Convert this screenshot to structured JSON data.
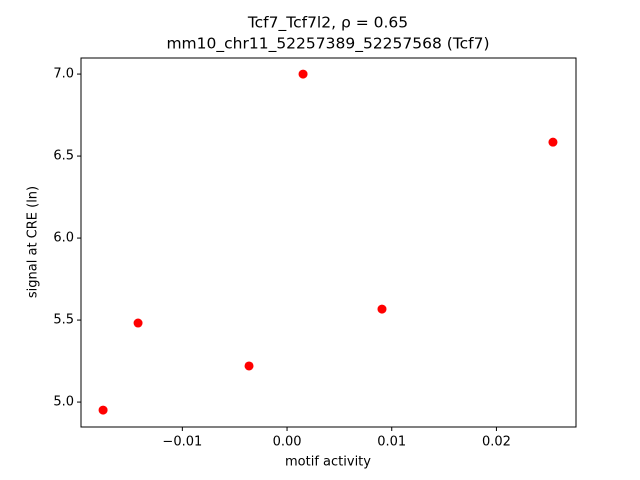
{
  "chart_data": {
    "type": "scatter",
    "title": [
      "Tcf7_Tcf7l2, ρ = 0.65",
      "mm10_chr11_52257389_52257568 (Tcf7)"
    ],
    "x_label": "motif activity",
    "y_label": "signal at CRE (ln)",
    "x": [
      -0.01757,
      -0.01423,
      -0.00363,
      0.00153,
      0.00907,
      0.0254
    ],
    "values": [
      4.951,
      5.482,
      5.22,
      7.0,
      5.567,
      6.585
    ],
    "color": "#ff0000",
    "xlim": [
      -0.01968,
      0.0276
    ],
    "ylim": [
      4.848,
      7.098
    ],
    "xticks": [
      {
        "value": -0.01,
        "label": "−0.01"
      },
      {
        "value": 0,
        "label": "0.00"
      },
      {
        "value": 0.01,
        "label": "0.01"
      },
      {
        "value": 0.02,
        "label": "0.02"
      }
    ],
    "yticks": [
      {
        "value": 5,
        "label": "5.0"
      },
      5.5,
      {
        "value": 6,
        "label": "6.0"
      },
      6.5,
      {
        "value": 7,
        "label": "7.0"
      }
    ]
  }
}
